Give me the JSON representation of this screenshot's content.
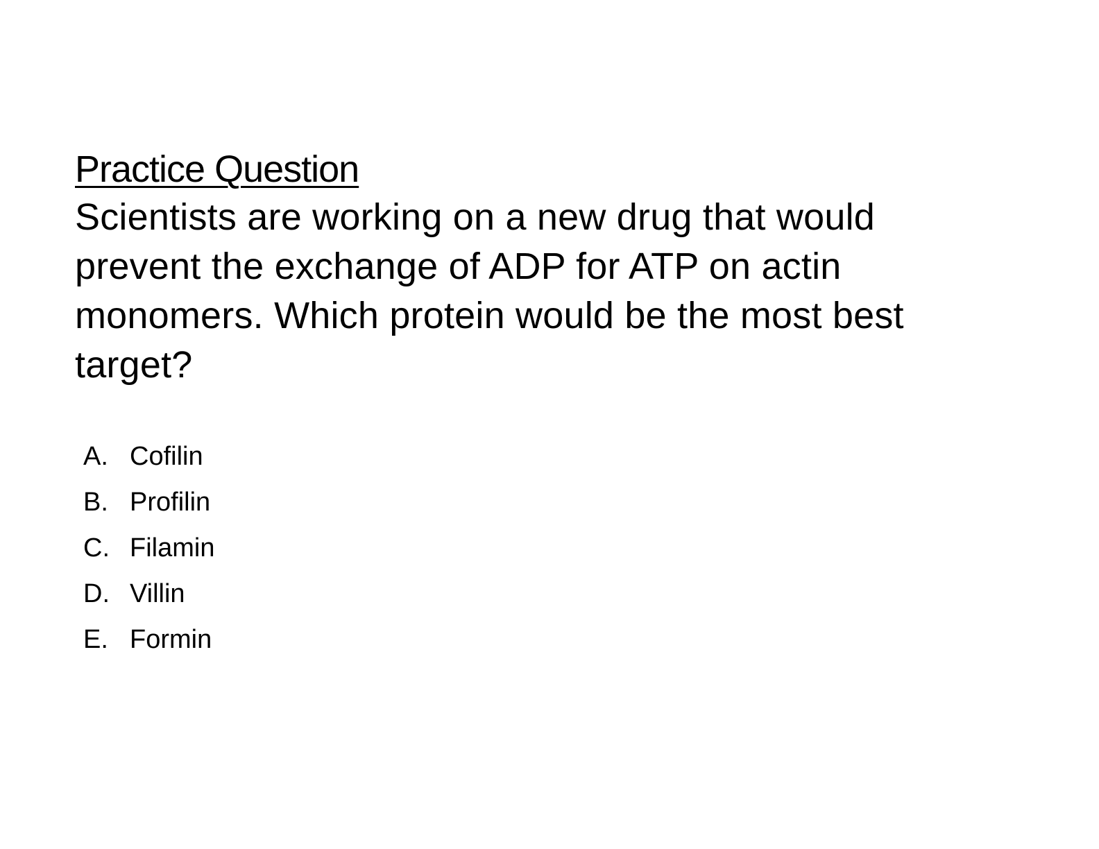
{
  "slide": {
    "title": "Practice Question",
    "question": "Scientists are working on a new drug that would prevent the exchange of ADP for ATP on actin monomers.  Which protein would be the most best target?",
    "options": [
      {
        "letter": "A.",
        "text": "Cofilin"
      },
      {
        "letter": "B.",
        "text": "Profilin"
      },
      {
        "letter": "C.",
        "text": "Filamin"
      },
      {
        "letter": "D.",
        "text": "Villin"
      },
      {
        "letter": "E.",
        "text": "Formin"
      }
    ]
  }
}
